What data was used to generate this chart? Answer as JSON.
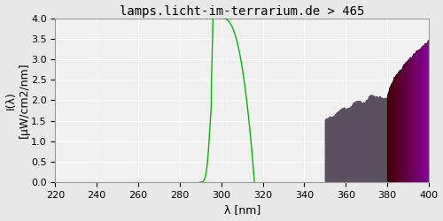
{
  "title": "lamps.licht-im-terrarium.de > 465",
  "xlabel": "λ [nm]",
  "ylabel": "I(λ)\n[μW/cm2/nm]",
  "xlim": [
    220,
    400
  ],
  "ylim": [
    0,
    4.0
  ],
  "xticks": [
    220,
    240,
    260,
    280,
    300,
    320,
    340,
    360,
    380,
    400
  ],
  "yticks": [
    0.0,
    0.5,
    1.0,
    1.5,
    2.0,
    2.5,
    3.0,
    3.5,
    4.0
  ],
  "bg_color": "#e8e8e8",
  "plot_bg_color": "#f0f0f0",
  "grid_color": "#ffffff",
  "line_color": "#00bb00",
  "uvb_fill_color": "#5a5060",
  "uva_color_bottom": "#4a0050",
  "uva_color_top": "#8800aa",
  "uvb_start": 350,
  "uvb_end": 380,
  "uva_start": 380,
  "uva_end": 400,
  "title_fontsize": 10,
  "axis_fontsize": 9,
  "tick_fontsize": 8
}
